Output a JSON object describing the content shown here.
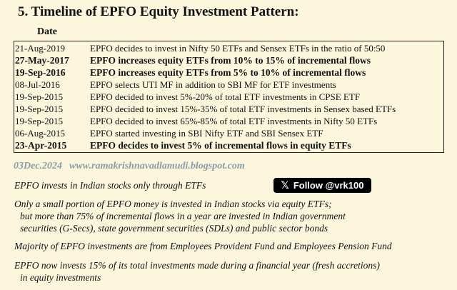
{
  "title": "5. Timeline of EPFO Equity Investment Pattern:",
  "date_header": "Date",
  "timeline": [
    {
      "date": "21-Aug-2019",
      "event": "EPFO decides to invest in Nifty 50 ETFs and Sensex ETFs in the ratio of 50:50",
      "bold": false
    },
    {
      "date": "27-May-2017",
      "event": "EPFO  increases equity ETFs from 10% to 15% of incremental flows",
      "bold": true
    },
    {
      "date": "19-Sep-2016",
      "event": "EPFO increases equity ETFs from 5% to 10% of incremental flows",
      "bold": true
    },
    {
      "date": "08-Jul-2016",
      "event": "EPFO selects UTI MF in addition to SBI MF for ETF investments",
      "bold": false
    },
    {
      "date": "19-Sep-2015",
      "event": "EPFO decided to invest 5%-20% of total ETF investments in CPSE ETF",
      "bold": false
    },
    {
      "date": "19-Sep-2015",
      "event": "EPFO decided to invest 15%-35% of total ETF investments in Sensex based ETFs",
      "bold": false
    },
    {
      "date": "19-Sep-2015",
      "event": "EPFO decided to invest 65%-85% of total ETF investments in Nifty 50 ETFs",
      "bold": false
    },
    {
      "date": "06-Aug-2015",
      "event": "EPFO started investing in SBI Nifty ETF and SBI Sensex ETF",
      "bold": false
    },
    {
      "date": "23-Apr-2015",
      "event": "EPFO decides to invest 5% of incremental flows in equity ETFs",
      "bold": true
    }
  ],
  "credit": {
    "date": "03Dec.2024",
    "site": "www.ramakrishnavadlamudi.blogspot.com"
  },
  "x_follow": {
    "icon": "x-logo-icon",
    "label": "Follow @vrk100"
  },
  "notes": {
    "n1": "EPFO invests in Indian stocks only through ETFs",
    "n2_l1": "Only a small portion of EPFO money is invested in Indian stocks via equity ETFs;",
    "n2_l2": "but more than 75% of incremental flows in a year are invested in Indian government",
    "n2_l3": "securities (G-Secs), state government securities (SDLs) and public sector bonds",
    "n3": "Majority of EPFO investments are from Employees Provident Fund and Employees Pension Fund",
    "n4_l1": "EPFO now invests 15% of its total investments made during a financial year (fresh accretions)",
    "n4_l2": "in equity investments"
  }
}
